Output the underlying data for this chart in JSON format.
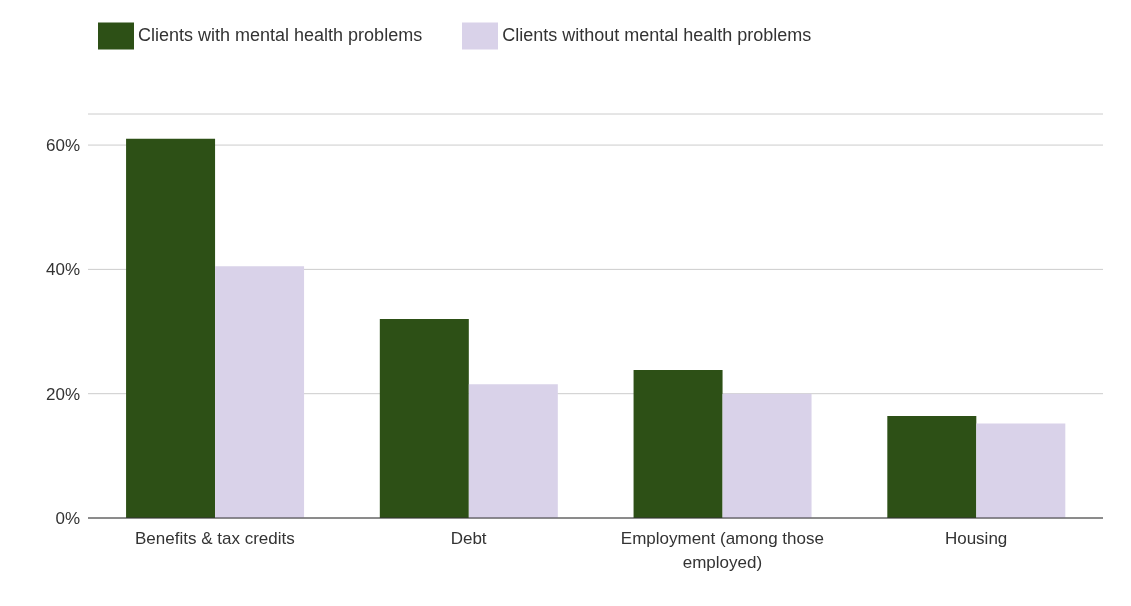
{
  "chart_data": {
    "type": "bar",
    "categories": [
      "Benefits & tax credits",
      "Debt",
      "Employment (among those employed)",
      "Housing"
    ],
    "series": [
      {
        "name": "Clients with mental health problems",
        "color": "#2d5016",
        "values": [
          61,
          32,
          23.8,
          16.4
        ]
      },
      {
        "name": "Clients without mental health problems",
        "color": "#d9d2e9",
        "values": [
          40.5,
          21.5,
          20,
          15.2
        ]
      }
    ],
    "ylim": [
      0,
      65
    ],
    "yticks": [
      {
        "value": 0,
        "label": "0%"
      },
      {
        "value": 20,
        "label": "20%"
      },
      {
        "value": 40,
        "label": "40%"
      },
      {
        "value": 60,
        "label": "60%"
      }
    ],
    "grid": "y",
    "legend": "top left"
  }
}
